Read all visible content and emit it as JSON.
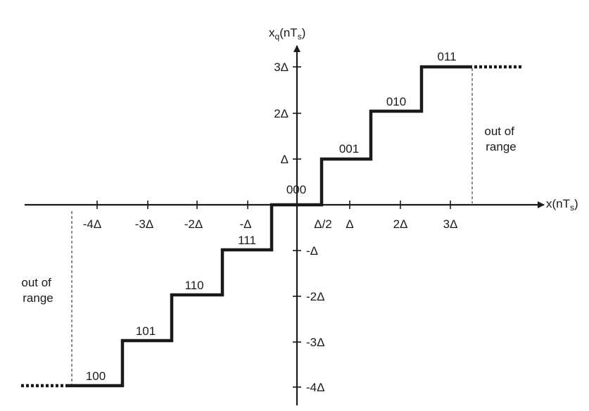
{
  "axes": {
    "x_label_main": "x(nT",
    "x_label_sub": "s",
    "x_label_close": ")",
    "y_label_main": "x",
    "y_label_sub_q": "q",
    "y_label_mid": "(nT",
    "y_label_sub_s": "s",
    "y_label_close": ")"
  },
  "x_ticks": [
    "-4Δ",
    "-3Δ",
    "-2Δ",
    "-Δ",
    "Δ/2",
    "Δ",
    "2Δ",
    "3Δ"
  ],
  "y_ticks": [
    "3Δ",
    "2Δ",
    "Δ",
    "-Δ",
    "-2Δ",
    "-3Δ",
    "-4Δ"
  ],
  "codes": [
    "100",
    "101",
    "110",
    "111",
    "000",
    "001",
    "010",
    "011"
  ],
  "out_of_range_right": [
    "out of",
    "range"
  ],
  "out_of_range_left": [
    "out of",
    "range"
  ],
  "colors": {
    "ink": "#1a1a1a",
    "background": "#ffffff"
  }
}
